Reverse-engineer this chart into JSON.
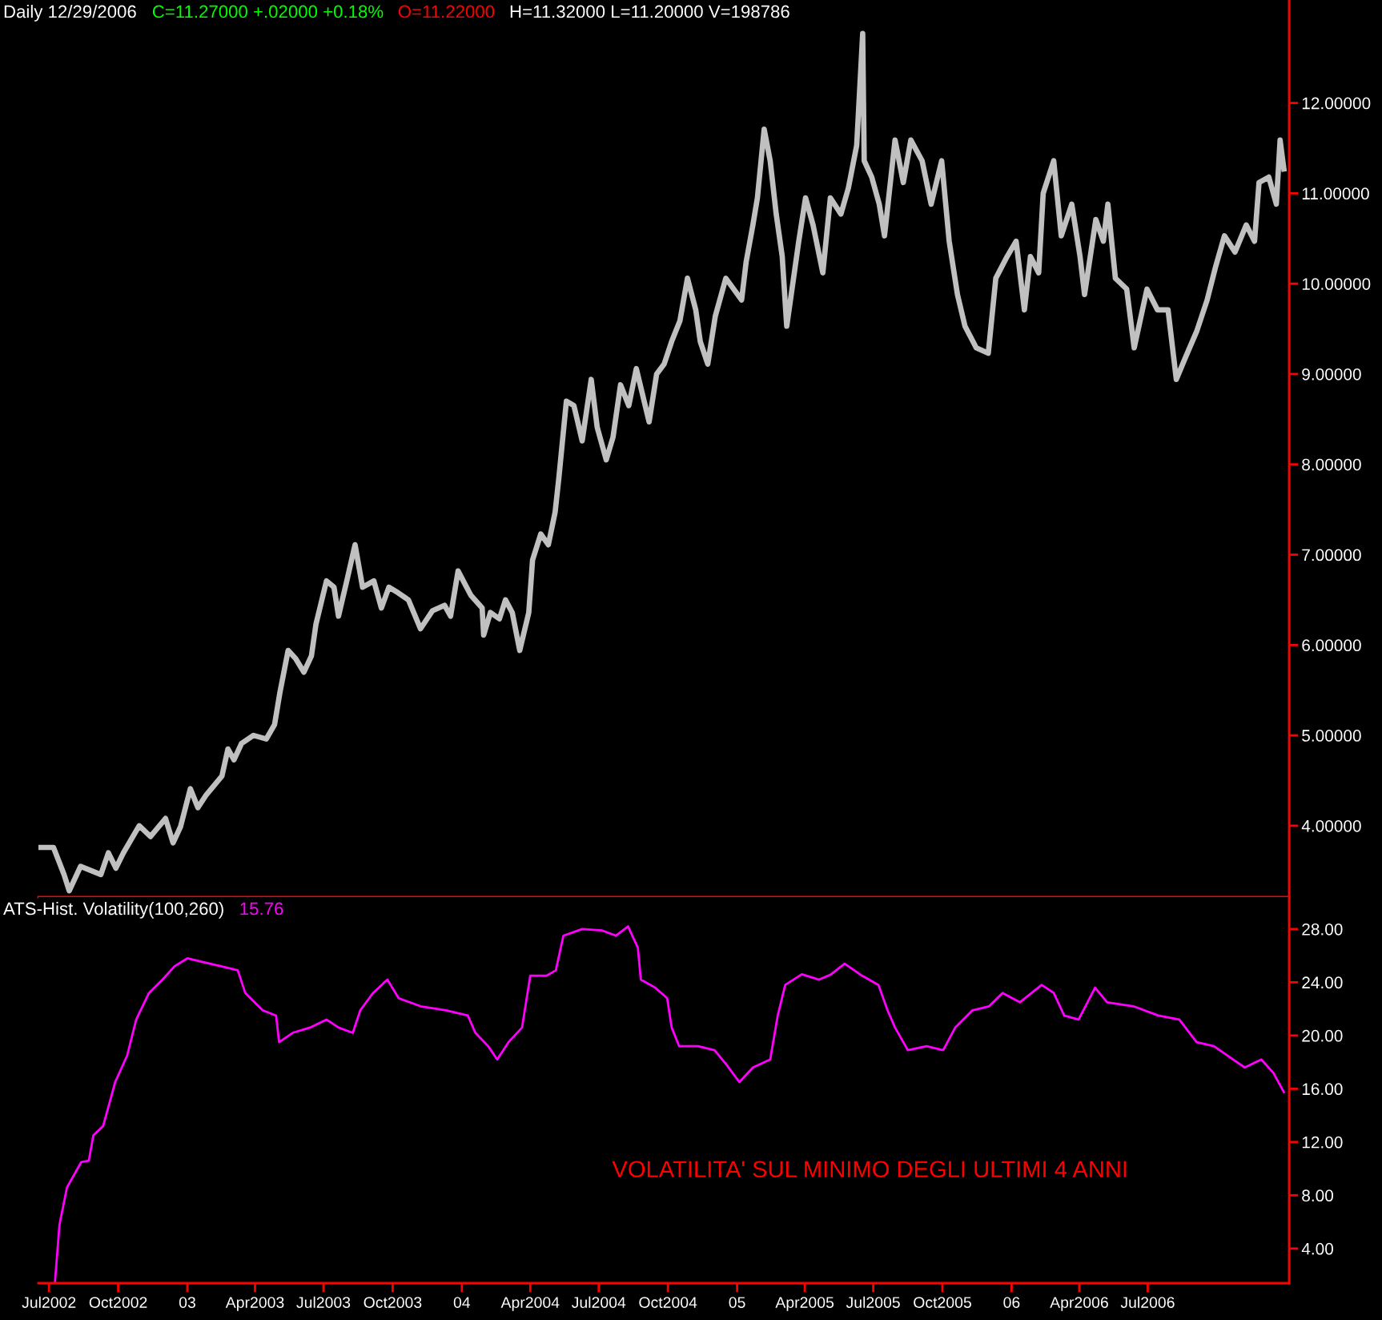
{
  "chart_data": [
    {
      "type": "line",
      "title": "Daily 12/29/2006 C=11.27000 +.02000 +0.18% O=11.22000 H=11.32000 L=11.20000 V=198786",
      "x": [
        "2002-06-17",
        "2002-07-07",
        "2002-07-21",
        "2002-07-28",
        "2002-08-12",
        "2002-09-08",
        "2002-09-18",
        "2002-09-28",
        "2002-10-08",
        "2002-10-29",
        "2002-11-13",
        "2002-12-03",
        "2002-12-13",
        "2002-12-23",
        "2003-01-05",
        "2003-01-15",
        "2003-01-26",
        "2003-02-16",
        "2003-02-24",
        "2003-03-04",
        "2003-03-14",
        "2003-03-30",
        "2003-04-16",
        "2003-04-27",
        "2003-05-04",
        "2003-05-15",
        "2003-05-25",
        "2003-06-05",
        "2003-06-15",
        "2003-06-21",
        "2003-07-05",
        "2003-07-15",
        "2003-07-21",
        "2003-08-01",
        "2003-08-12",
        "2003-08-22",
        "2003-09-06",
        "2003-09-16",
        "2003-09-26",
        "2003-10-08",
        "2003-10-22",
        "2003-11-07",
        "2003-11-23",
        "2003-12-09",
        "2003-12-17",
        "2003-12-27",
        "2004-01-13",
        "2004-01-28",
        "2004-01-30",
        "2004-02-08",
        "2004-02-20",
        "2004-02-28",
        "2004-03-08",
        "2004-03-18",
        "2004-03-30",
        "2004-04-04",
        "2004-04-15",
        "2004-04-25",
        "2004-05-04",
        "2004-05-09",
        "2004-05-19",
        "2004-05-29",
        "2004-06-09",
        "2004-06-21",
        "2004-06-29",
        "2004-07-11",
        "2004-07-20",
        "2004-07-30",
        "2004-08-10",
        "2004-08-20",
        "2004-09-06",
        "2004-09-16",
        "2004-09-26",
        "2004-10-06",
        "2004-10-17",
        "2004-10-27",
        "2004-11-07",
        "2004-11-13",
        "2004-11-23",
        "2004-12-03",
        "2004-12-17",
        "2005-01-07",
        "2005-01-13",
        "2005-01-22",
        "2005-01-28",
        "2005-02-06",
        "2005-02-14",
        "2005-02-22",
        "2005-03-02",
        "2005-03-08",
        "2005-03-14",
        "2005-03-24",
        "2005-04-02",
        "2005-04-12",
        "2005-04-25",
        "2005-05-05",
        "2005-05-19",
        "2005-05-29",
        "2005-06-09",
        "2005-06-17",
        "2005-06-19",
        "2005-06-29",
        "2005-07-09",
        "2005-07-16",
        "2005-07-30",
        "2005-08-10",
        "2005-08-20",
        "2005-09-04",
        "2005-09-16",
        "2005-09-30",
        "2005-10-10",
        "2005-10-21",
        "2005-10-31",
        "2005-11-15",
        "2005-12-01",
        "2005-12-11",
        "2005-12-26",
        "2006-01-07",
        "2006-01-18",
        "2006-01-26",
        "2006-02-06",
        "2006-02-12",
        "2006-02-26",
        "2006-03-08",
        "2006-03-22",
        "2006-04-02",
        "2006-04-08",
        "2006-04-23",
        "2006-05-03",
        "2006-05-09",
        "2006-05-19",
        "2006-06-03",
        "2006-06-13",
        "2006-06-30",
        "2006-07-14",
        "2006-07-28",
        "2006-08-08",
        "2006-08-20",
        "2006-09-04",
        "2006-09-18",
        "2006-09-29",
        "2006-10-11",
        "2006-10-25",
        "2006-11-09",
        "2006-11-20",
        "2006-11-26",
        "2006-12-09",
        "2006-12-19",
        "2006-12-24",
        "2006-12-29"
      ],
      "series": [
        {
          "color": "#c0c0c0",
          "values": [
            3.76,
            3.76,
            3.46,
            3.28,
            3.55,
            3.46,
            3.7,
            3.53,
            3.7,
            4.0,
            3.88,
            4.08,
            3.81,
            3.99,
            4.41,
            4.2,
            4.34,
            4.55,
            4.85,
            4.73,
            4.91,
            5.0,
            4.96,
            5.12,
            5.47,
            5.94,
            5.85,
            5.7,
            5.88,
            6.23,
            6.71,
            6.64,
            6.32,
            6.71,
            7.11,
            6.64,
            6.71,
            6.41,
            6.64,
            6.58,
            6.5,
            6.18,
            6.38,
            6.44,
            6.32,
            6.82,
            6.55,
            6.41,
            6.11,
            6.36,
            6.29,
            6.5,
            6.36,
            5.94,
            6.36,
            6.94,
            7.23,
            7.11,
            7.47,
            7.85,
            8.7,
            8.65,
            8.26,
            8.94,
            8.41,
            8.05,
            8.3,
            8.88,
            8.65,
            9.06,
            8.47,
            9.0,
            9.11,
            9.36,
            9.59,
            10.06,
            9.71,
            9.36,
            9.11,
            9.64,
            10.06,
            9.82,
            10.24,
            10.65,
            10.95,
            11.71,
            11.36,
            10.77,
            10.3,
            9.53,
            9.88,
            10.47,
            10.95,
            10.65,
            10.12,
            10.95,
            10.77,
            11.06,
            11.53,
            12.77,
            11.36,
            11.18,
            10.88,
            10.53,
            11.59,
            11.12,
            11.59,
            11.36,
            10.88,
            11.36,
            10.47,
            9.88,
            9.53,
            9.29,
            9.23,
            10.06,
            10.3,
            10.47,
            9.71,
            10.3,
            10.12,
            11.0,
            11.36,
            10.53,
            10.88,
            10.3,
            9.88,
            10.71,
            10.47,
            10.88,
            10.06,
            9.94,
            9.29,
            9.94,
            9.71,
            9.71,
            8.94,
            9.18,
            9.47,
            9.82,
            10.18,
            10.53,
            10.35,
            10.65,
            10.47,
            11.12,
            11.18,
            10.88,
            11.59,
            11.27
          ]
        }
      ],
      "xlim": [
        "2002-06-17",
        "2007-01-05"
      ],
      "ylim": [
        3.21,
        13.14
      ],
      "yticks": [
        {
          "value": 4,
          "label": "4.00000"
        },
        {
          "value": 5,
          "label": "5.00000"
        },
        {
          "value": 6,
          "label": "6.00000"
        },
        {
          "value": 7,
          "label": "7.00000"
        },
        {
          "value": 8,
          "label": "8.00000"
        },
        {
          "value": 9,
          "label": "9.00000"
        },
        {
          "value": 10,
          "label": "10.00000"
        },
        {
          "value": 11,
          "label": "11.00000"
        },
        {
          "value": 12,
          "label": "12.00000"
        }
      ],
      "tick_labels": "y"
    },
    {
      "type": "line",
      "title": "ATS-Hist. Volatility(100,260)",
      "annotations": [
        "15.76",
        "VOLATILITA' SUL MINIMO DEGLI ULTIMI 4 ANNI"
      ],
      "x": [
        "2002-07-09",
        "2002-07-15",
        "2002-07-25",
        "2002-08-13",
        "2002-08-23",
        "2002-08-29",
        "2002-09-11",
        "2002-09-27",
        "2002-10-13",
        "2002-10-25",
        "2002-11-11",
        "2002-11-29",
        "2002-12-15",
        "2003-01-01",
        "2003-01-23",
        "2003-02-15",
        "2003-03-09",
        "2003-03-19",
        "2003-04-11",
        "2003-04-29",
        "2003-05-03",
        "2003-05-21",
        "2003-06-13",
        "2003-07-05",
        "2003-07-21",
        "2003-08-09",
        "2003-08-19",
        "2003-09-05",
        "2003-09-24",
        "2003-10-09",
        "2003-11-07",
        "2003-12-11",
        "2004-01-09",
        "2004-01-19",
        "2004-02-05",
        "2004-02-17",
        "2004-03-03",
        "2004-03-21",
        "2004-04-01",
        "2004-04-23",
        "2004-05-05",
        "2004-05-15",
        "2004-06-09",
        "2004-07-05",
        "2004-07-24",
        "2004-08-09",
        "2004-08-22",
        "2004-08-26",
        "2004-09-14",
        "2004-09-30",
        "2004-10-06",
        "2004-10-16",
        "2004-11-10",
        "2004-12-02",
        "2004-12-18",
        "2005-01-04",
        "2005-01-22",
        "2005-02-14",
        "2005-02-24",
        "2005-03-06",
        "2005-03-28",
        "2005-04-20",
        "2005-05-06",
        "2005-05-24",
        "2005-06-16",
        "2005-07-08",
        "2005-07-20",
        "2005-07-30",
        "2005-08-16",
        "2005-09-10",
        "2005-10-02",
        "2005-10-18",
        "2005-11-10",
        "2005-12-02",
        "2005-12-20",
        "2006-01-12",
        "2006-02-10",
        "2006-02-26",
        "2006-03-12",
        "2006-03-31",
        "2006-04-22",
        "2006-05-08",
        "2006-06-12",
        "2006-07-15",
        "2006-08-12",
        "2006-09-04",
        "2006-09-27",
        "2006-10-15",
        "2006-11-07",
        "2006-11-29",
        "2006-12-15",
        "2006-12-29"
      ],
      "series": [
        {
          "color": "#ff00ff",
          "values": [
            1.5,
            5.8,
            8.6,
            10.5,
            10.6,
            12.5,
            13.2,
            16.5,
            18.5,
            21.2,
            23.2,
            24.2,
            25.2,
            25.8,
            25.5,
            25.2,
            24.9,
            23.2,
            21.9,
            21.5,
            19.5,
            20.2,
            20.6,
            21.2,
            20.6,
            20.2,
            21.9,
            23.2,
            24.2,
            22.8,
            22.2,
            21.9,
            21.5,
            20.2,
            19.2,
            18.2,
            19.5,
            20.6,
            24.5,
            24.5,
            24.9,
            27.5,
            28.0,
            27.9,
            27.5,
            28.2,
            26.6,
            24.2,
            23.6,
            22.8,
            20.6,
            19.2,
            19.2,
            18.9,
            17.8,
            16.5,
            17.6,
            18.2,
            21.5,
            23.8,
            24.6,
            24.2,
            24.6,
            25.4,
            24.5,
            23.8,
            21.9,
            20.6,
            18.9,
            19.2,
            18.9,
            20.6,
            21.9,
            22.2,
            23.2,
            22.5,
            23.8,
            23.2,
            21.5,
            21.2,
            23.6,
            22.5,
            22.2,
            21.5,
            21.2,
            19.5,
            19.2,
            18.5,
            17.6,
            18.2,
            17.2,
            15.76
          ]
        }
      ],
      "xlim": [
        "2002-06-17",
        "2007-01-05"
      ],
      "xticks": [
        {
          "value": "2002-07-01",
          "label": "Jul2002"
        },
        {
          "value": "2002-10-01",
          "label": "Oct2002"
        },
        {
          "value": "2003-01-01",
          "label": "03"
        },
        {
          "value": "2003-04-01",
          "label": "Apr2003"
        },
        {
          "value": "2003-07-01",
          "label": "Jul2003"
        },
        {
          "value": "2003-10-01",
          "label": "Oct2003"
        },
        {
          "value": "2004-01-01",
          "label": "04"
        },
        {
          "value": "2004-04-01",
          "label": "Apr2004"
        },
        {
          "value": "2004-07-01",
          "label": "Jul2004"
        },
        {
          "value": "2004-10-01",
          "label": "Oct2004"
        },
        {
          "value": "2005-01-01",
          "label": "05"
        },
        {
          "value": "2005-04-01",
          "label": "Apr2005"
        },
        {
          "value": "2005-07-01",
          "label": "Jul2005"
        },
        {
          "value": "2005-10-01",
          "label": "Oct2005"
        },
        {
          "value": "2006-01-01",
          "label": "06"
        },
        {
          "value": "2006-04-01",
          "label": "Apr2006"
        },
        {
          "value": "2006-07-01",
          "label": "Jul2006"
        }
      ],
      "ylim": [
        1.4,
        30.4
      ],
      "yticks": [
        {
          "value": 4,
          "label": "4.00"
        },
        {
          "value": 8,
          "label": "8.00"
        },
        {
          "value": 12,
          "label": "12.00"
        },
        {
          "value": 16,
          "label": "16.00"
        },
        {
          "value": 20,
          "label": "20.00"
        },
        {
          "value": 24,
          "label": "24.00"
        },
        {
          "value": 28,
          "label": "28.00"
        }
      ]
    }
  ]
}
